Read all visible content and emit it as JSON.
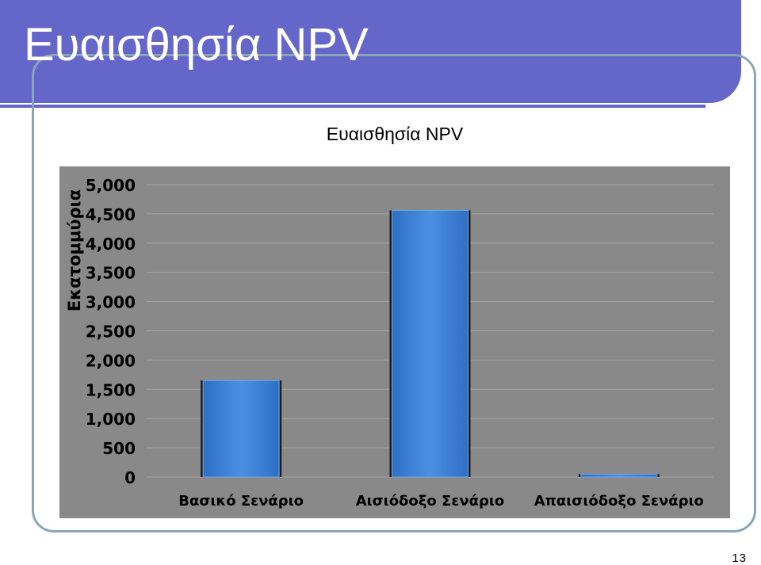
{
  "slide": {
    "title": "Ευαισθησία NPV",
    "page_number": "13"
  },
  "colors": {
    "header": "#6566c9",
    "plot_background": "#898989",
    "bar": "#3d84dc"
  },
  "chart_data": {
    "type": "bar",
    "title": "Ευαισθησία NPV",
    "xlabel": "",
    "ylabel": "Εκατομμύρια",
    "categories": [
      "Βασικό Σενάριο",
      "Αισιόδοξο Σενάριο",
      "Απαισιόδοξο Σενάριο"
    ],
    "values": [
      1650,
      4560,
      50
    ],
    "ylim": [
      0,
      5000
    ],
    "yticks": [
      0,
      500,
      1000,
      1500,
      2000,
      2500,
      3000,
      3500,
      4000,
      4500,
      5000
    ],
    "ytick_labels": [
      "0",
      "500",
      "1,000",
      "1,500",
      "2,000",
      "2,500",
      "3,000",
      "3,500",
      "4,000",
      "4,500",
      "5,000"
    ],
    "grid": true,
    "legend": "none"
  }
}
